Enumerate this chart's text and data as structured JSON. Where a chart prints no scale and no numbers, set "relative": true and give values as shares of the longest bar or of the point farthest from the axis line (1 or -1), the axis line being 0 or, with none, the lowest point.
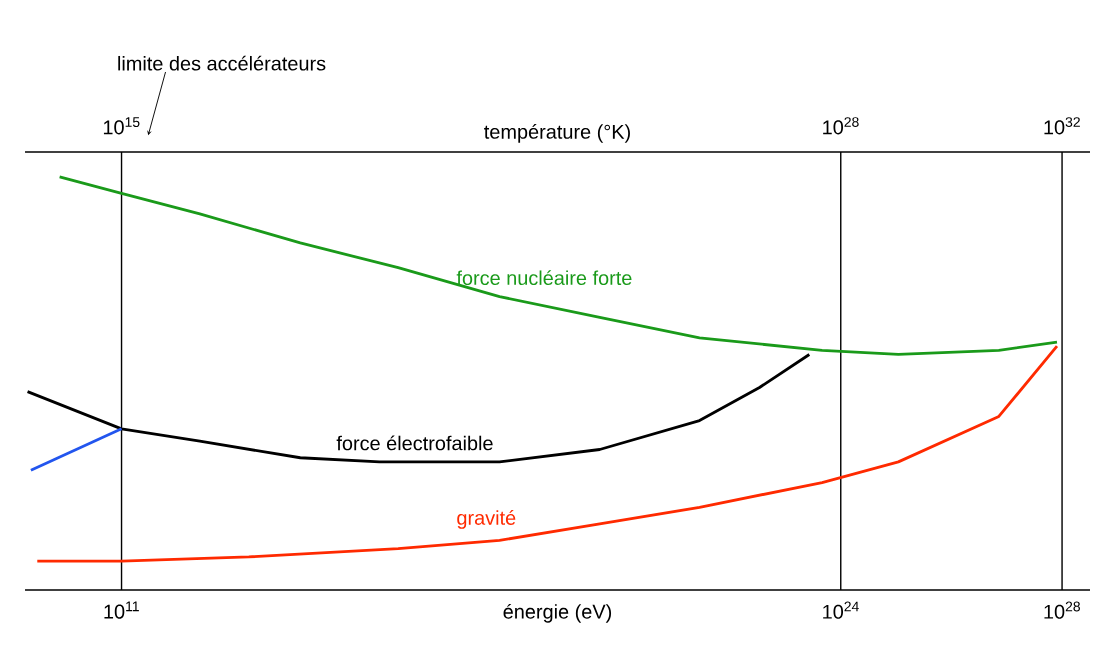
{
  "chart_data": {
    "type": "line",
    "relative": true,
    "log": "x",
    "xlabel": "énergie (eV)",
    "x2label": "température (°K)",
    "xlim": [
      1800000000.0,
      3.2e+28
    ],
    "xticks": [
      {
        "value": 100000000000.0,
        "label": "10$^{11}$"
      },
      {
        "value": 1e+24,
        "label": "10$^{24}$"
      },
      {
        "value": 1e+28,
        "label": "10$^{28}$"
      }
    ],
    "grid": "x",
    "annotations": [
      "limite des accélérateurs",
      "10$^{15}$",
      "10$^{28}$",
      "10$^{32}$"
    ],
    "series": [
      {
        "name": "force nucléaire forte",
        "color": "#1a9a1a",
        "x": [
          7600000000.0,
          100000000000.0,
          2600000000000.0,
          170000000000000.0,
          1e+16,
          6.8e+17,
          4.4e+19,
          2.8e+21,
          4.6e+23,
          1.1e+25,
          7.2e+26,
          8.1e+27
        ],
        "values": [
          1.0,
          0.96,
          0.91,
          0.84,
          0.78,
          0.71,
          0.66,
          0.61,
          0.58,
          0.57,
          0.58,
          0.6
        ]
      },
      {
        "name": "force électrofaible",
        "color": "#000000",
        "x": [
          2000000000.0,
          100000000000.0,
          2600000000000.0,
          170000000000000.0,
          4600000000000000.0,
          6.8e+17,
          4.4e+19,
          2.8e+21,
          3.4e+22,
          2.7e+23
        ],
        "values": [
          0.48,
          0.39,
          0.36,
          0.32,
          0.31,
          0.31,
          0.34,
          0.41,
          0.49,
          0.57
        ]
      },
      {
        "color": "#2255ee",
        "x": [
          2300000000.0,
          100000000000.0
        ],
        "values": [
          0.29,
          0.39
        ]
      },
      {
        "name": "gravité",
        "color": "#ff2a00",
        "x": [
          3000000000.0,
          100000000000.0,
          20000000000000.0,
          1e+16,
          6.8e+17,
          4.4e+19,
          2.8e+21,
          4.6e+23,
          1.1e+25,
          7.2e+26,
          8.1e+27
        ],
        "values": [
          0.07,
          0.07,
          0.08,
          0.1,
          0.12,
          0.16,
          0.2,
          0.26,
          0.31,
          0.42,
          0.59
        ]
      }
    ]
  }
}
